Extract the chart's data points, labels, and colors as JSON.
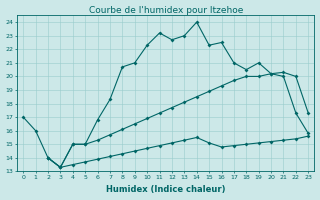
{
  "title": "Courbe de l'humidex pour Itzehoe",
  "xlabel": "Humidex (Indice chaleur)",
  "bg_color": "#cce8e8",
  "line_color": "#006666",
  "grid_color": "#99cccc",
  "xlim": [
    -0.5,
    23.5
  ],
  "ylim": [
    13,
    24.5
  ],
  "xticks": [
    0,
    1,
    2,
    3,
    4,
    5,
    6,
    7,
    8,
    9,
    10,
    11,
    12,
    13,
    14,
    15,
    16,
    17,
    18,
    19,
    20,
    21,
    22,
    23
  ],
  "yticks": [
    13,
    14,
    15,
    16,
    17,
    18,
    19,
    20,
    21,
    22,
    23,
    24
  ],
  "line1_x": [
    0,
    1,
    2,
    3,
    4,
    5,
    6,
    7,
    8,
    9,
    10,
    11,
    12,
    13,
    14,
    15,
    16,
    17,
    18,
    19,
    20,
    21,
    22,
    23
  ],
  "line1_y": [
    17.0,
    16.0,
    14.0,
    13.3,
    15.0,
    15.0,
    16.8,
    18.3,
    20.7,
    21.0,
    22.3,
    23.2,
    22.7,
    23.0,
    24.0,
    22.3,
    22.5,
    21.0,
    20.5,
    21.0,
    20.2,
    20.0,
    17.3,
    15.8
  ],
  "line2_x": [
    2,
    3,
    4,
    5,
    6,
    7,
    8,
    9,
    10,
    11,
    12,
    13,
    14,
    15,
    16,
    17,
    18,
    19,
    20,
    21,
    22,
    23
  ],
  "line2_y": [
    14.0,
    13.3,
    15.0,
    15.0,
    15.3,
    15.7,
    16.1,
    16.5,
    16.9,
    17.3,
    17.7,
    18.1,
    18.5,
    18.9,
    19.3,
    19.7,
    20.0,
    20.0,
    20.2,
    20.3,
    20.0,
    17.3
  ],
  "line3_x": [
    2,
    3,
    4,
    5,
    6,
    7,
    8,
    9,
    10,
    11,
    12,
    13,
    14,
    15,
    16,
    17,
    18,
    19,
    20,
    21,
    22,
    23
  ],
  "line3_y": [
    14.0,
    13.3,
    13.5,
    13.7,
    13.9,
    14.1,
    14.3,
    14.5,
    14.7,
    14.9,
    15.1,
    15.3,
    15.5,
    15.1,
    14.8,
    14.9,
    15.0,
    15.1,
    15.2,
    15.3,
    15.4,
    15.6
  ],
  "title_fontsize": 6.5,
  "xlabel_fontsize": 6,
  "tick_fontsize": 4.5,
  "marker_size": 2.0,
  "linewidth": 0.8
}
